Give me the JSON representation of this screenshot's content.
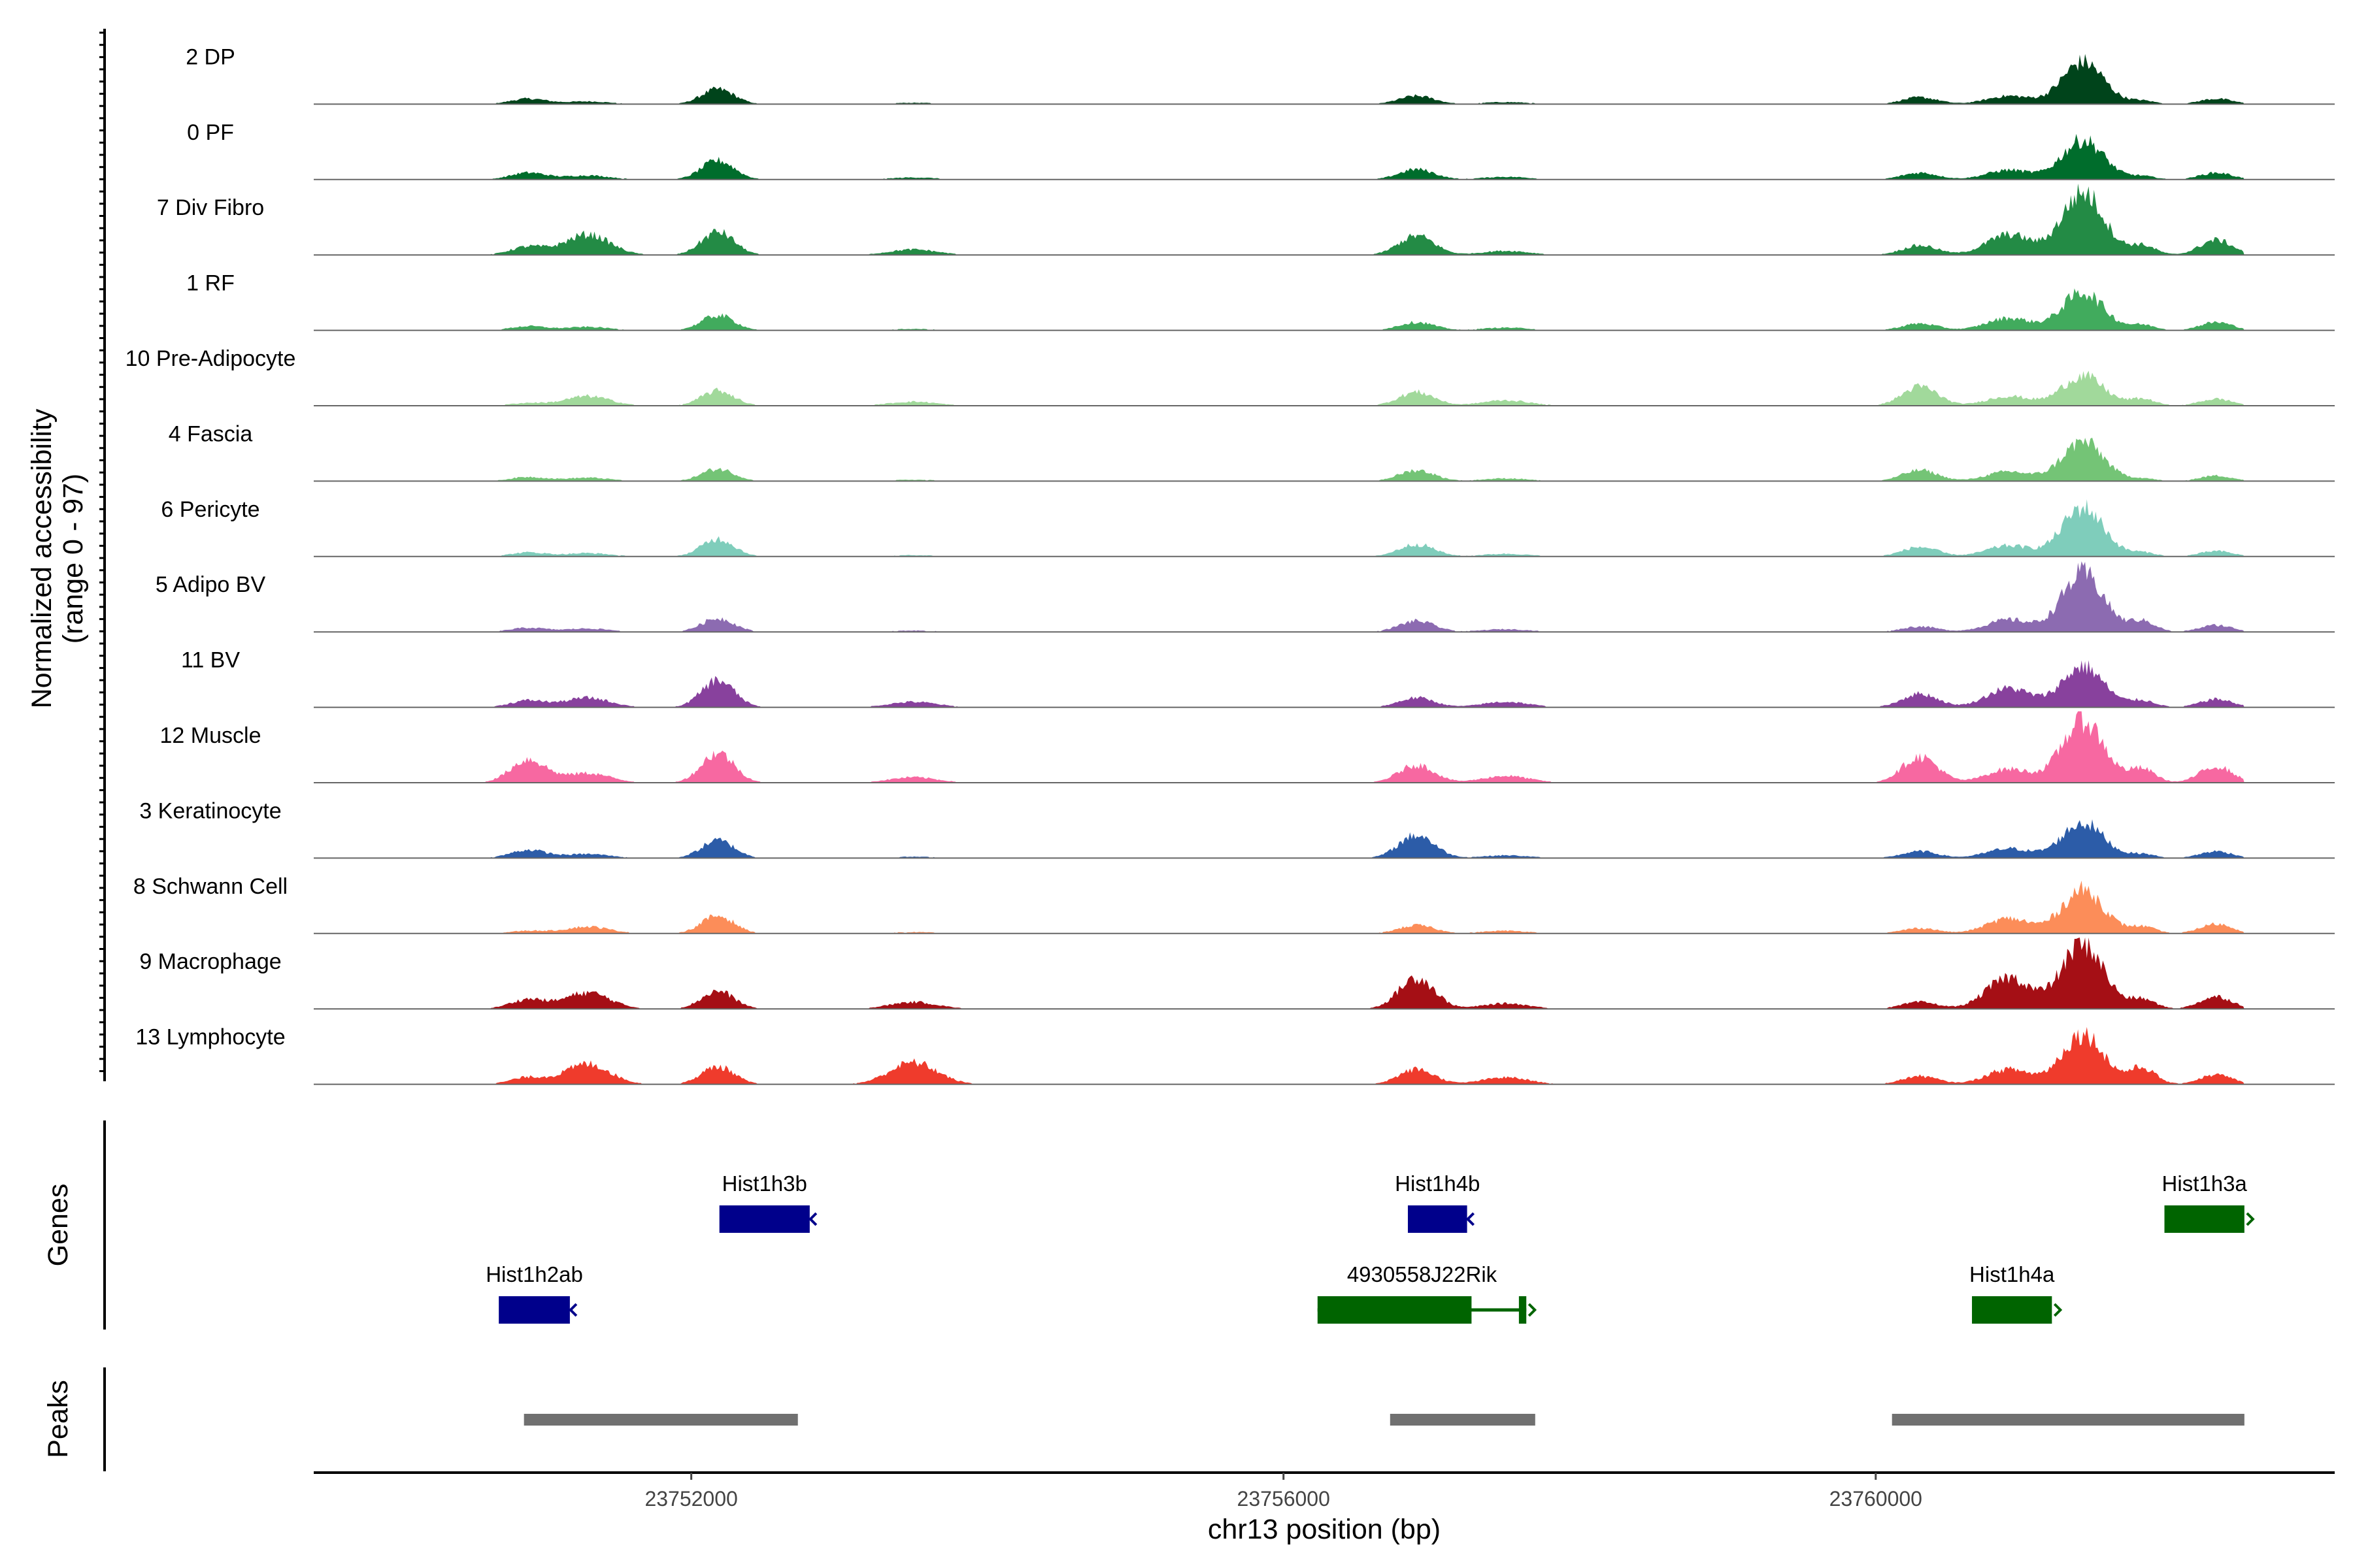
{
  "chart_data": {
    "type": "area",
    "title": "",
    "ylabel_line1": "Normalized accessibility",
    "ylabel_line2": "(range 0 - 97)",
    "y_range": [
      0,
      97
    ],
    "xlabel": "chr13 position (bp)",
    "x_range": [
      23749450,
      23763100
    ],
    "x_ticks": [
      {
        "value": 23752000,
        "label": "23752000"
      },
      {
        "value": 23756000,
        "label": "23756000"
      },
      {
        "value": 23760000,
        "label": "23760000"
      }
    ],
    "data_x_range": [
      23749450,
      23762490
    ],
    "peak_centers": [
      {
        "center": 23750900,
        "width": 120
      },
      {
        "center": 23751300,
        "width": 150
      },
      {
        "center": 23752180,
        "width": 110
      },
      {
        "center": 23753500,
        "width": 160
      },
      {
        "center": 23756900,
        "width": 120
      },
      {
        "center": 23757500,
        "width": 160
      },
      {
        "center": 23760300,
        "width": 120
      },
      {
        "center": 23760900,
        "width": 150
      },
      {
        "center": 23761400,
        "width": 140
      },
      {
        "center": 23761800,
        "width": 90
      },
      {
        "center": 23762300,
        "width": 110
      }
    ],
    "series": [
      {
        "name": "2 DP",
        "label": "2 DP",
        "color": "#00441b",
        "peaks": [
          0.08,
          0.04,
          0.22,
          0.02,
          0.12,
          0.03,
          0.1,
          0.12,
          0.62,
          0.05,
          0.08
        ]
      },
      {
        "name": "0 PF",
        "label": "0 PF",
        "color": "#006d2c",
        "peaks": [
          0.1,
          0.06,
          0.28,
          0.03,
          0.15,
          0.04,
          0.1,
          0.14,
          0.58,
          0.05,
          0.1
        ]
      },
      {
        "name": "7 Div Fibro",
        "label": "7 Div Fibro",
        "color": "#238b45",
        "peaks": [
          0.12,
          0.3,
          0.34,
          0.08,
          0.28,
          0.06,
          0.14,
          0.3,
          0.92,
          0.14,
          0.22
        ]
      },
      {
        "name": "1 RF",
        "label": "1 RF",
        "color": "#41ab5d",
        "peaks": [
          0.06,
          0.05,
          0.22,
          0.02,
          0.12,
          0.04,
          0.1,
          0.18,
          0.56,
          0.08,
          0.12
        ]
      },
      {
        "name": "10 Pre-Adipocyte",
        "label": "10 Pre-Adipocyte",
        "color": "#a1d99b",
        "peaks": [
          0.04,
          0.14,
          0.22,
          0.06,
          0.2,
          0.08,
          0.28,
          0.14,
          0.44,
          0.1,
          0.1
        ]
      },
      {
        "name": "4 Fascia",
        "label": "4 Fascia",
        "color": "#74c476",
        "peaks": [
          0.06,
          0.05,
          0.18,
          0.02,
          0.16,
          0.04,
          0.16,
          0.14,
          0.58,
          0.04,
          0.08
        ]
      },
      {
        "name": "6 Pericyte",
        "label": "6 Pericyte",
        "color": "#7fcdbb",
        "peaks": [
          0.06,
          0.05,
          0.26,
          0.02,
          0.18,
          0.04,
          0.14,
          0.16,
          0.72,
          0.06,
          0.08
        ]
      },
      {
        "name": "5 Adipo BV",
        "label": "5 Adipo BV",
        "color": "#8c6bb1",
        "peaks": [
          0.06,
          0.05,
          0.2,
          0.02,
          0.16,
          0.04,
          0.08,
          0.18,
          0.86,
          0.16,
          0.1
        ]
      },
      {
        "name": "11 BV",
        "label": "11 BV",
        "color": "#88419d",
        "peaks": [
          0.1,
          0.14,
          0.4,
          0.08,
          0.14,
          0.08,
          0.2,
          0.28,
          0.6,
          0.1,
          0.12
        ]
      },
      {
        "name": "12 Muscle",
        "label": "12 Muscle",
        "color": "#f768a1",
        "peaks": [
          0.34,
          0.14,
          0.44,
          0.08,
          0.26,
          0.1,
          0.38,
          0.2,
          0.92,
          0.2,
          0.24
        ]
      },
      {
        "name": "3 Keratinocyte",
        "label": "3 Keratinocyte",
        "color": "#2c5ca8",
        "peaks": [
          0.12,
          0.06,
          0.26,
          0.02,
          0.34,
          0.04,
          0.1,
          0.14,
          0.52,
          0.06,
          0.1
        ]
      },
      {
        "name": "8 Schwann Cell",
        "label": "8 Schwann Cell",
        "color": "#fc8d59",
        "peaks": [
          0.04,
          0.1,
          0.26,
          0.02,
          0.12,
          0.04,
          0.08,
          0.22,
          0.64,
          0.1,
          0.14
        ]
      },
      {
        "name": "9 Macrophage",
        "label": "9 Macrophage",
        "color": "#a50f15",
        "peaks": [
          0.14,
          0.24,
          0.26,
          0.1,
          0.46,
          0.08,
          0.1,
          0.46,
          0.96,
          0.14,
          0.18
        ]
      },
      {
        "name": "13 Lymphocyte",
        "label": "13 Lymphocyte",
        "color": "#ef3b2c",
        "peaks": [
          0.1,
          0.3,
          0.26,
          0.32,
          0.22,
          0.1,
          0.12,
          0.22,
          0.74,
          0.24,
          0.14
        ]
      }
    ],
    "genes_panel_label": "Genes",
    "genes": [
      {
        "name": "Hist1h3b",
        "start": 23752190,
        "end": 23752800,
        "strand": "-",
        "color": "#00008b",
        "row": 0
      },
      {
        "name": "Hist1h4b",
        "start": 23756840,
        "end": 23757240,
        "strand": "-",
        "color": "#00008b",
        "row": 0
      },
      {
        "name": "Hist1h3a",
        "start": 23761950,
        "end": 23762490,
        "strand": "+",
        "color": "#006400",
        "row": 0
      },
      {
        "name": "Hist1h2ab",
        "start": 23750700,
        "end": 23751180,
        "strand": "-",
        "color": "#00008b",
        "row": 1
      },
      {
        "name": "4930558J22Rik",
        "start": 23756230,
        "end": 23757640,
        "strand": "+",
        "color": "#006400",
        "row": 1,
        "exons": [
          [
            23756230,
            23757270
          ],
          [
            23757590,
            23757640
          ]
        ]
      },
      {
        "name": "Hist1h4a",
        "start": 23760650,
        "end": 23761190,
        "strand": "+",
        "color": "#006400",
        "row": 1
      }
    ],
    "peaks_panel_label": "Peaks",
    "peaks": [
      {
        "start": 23750870,
        "end": 23752720
      },
      {
        "start": 23756720,
        "end": 23757700
      },
      {
        "start": 23760110,
        "end": 23762490
      }
    ],
    "peak_color": "#707070"
  }
}
